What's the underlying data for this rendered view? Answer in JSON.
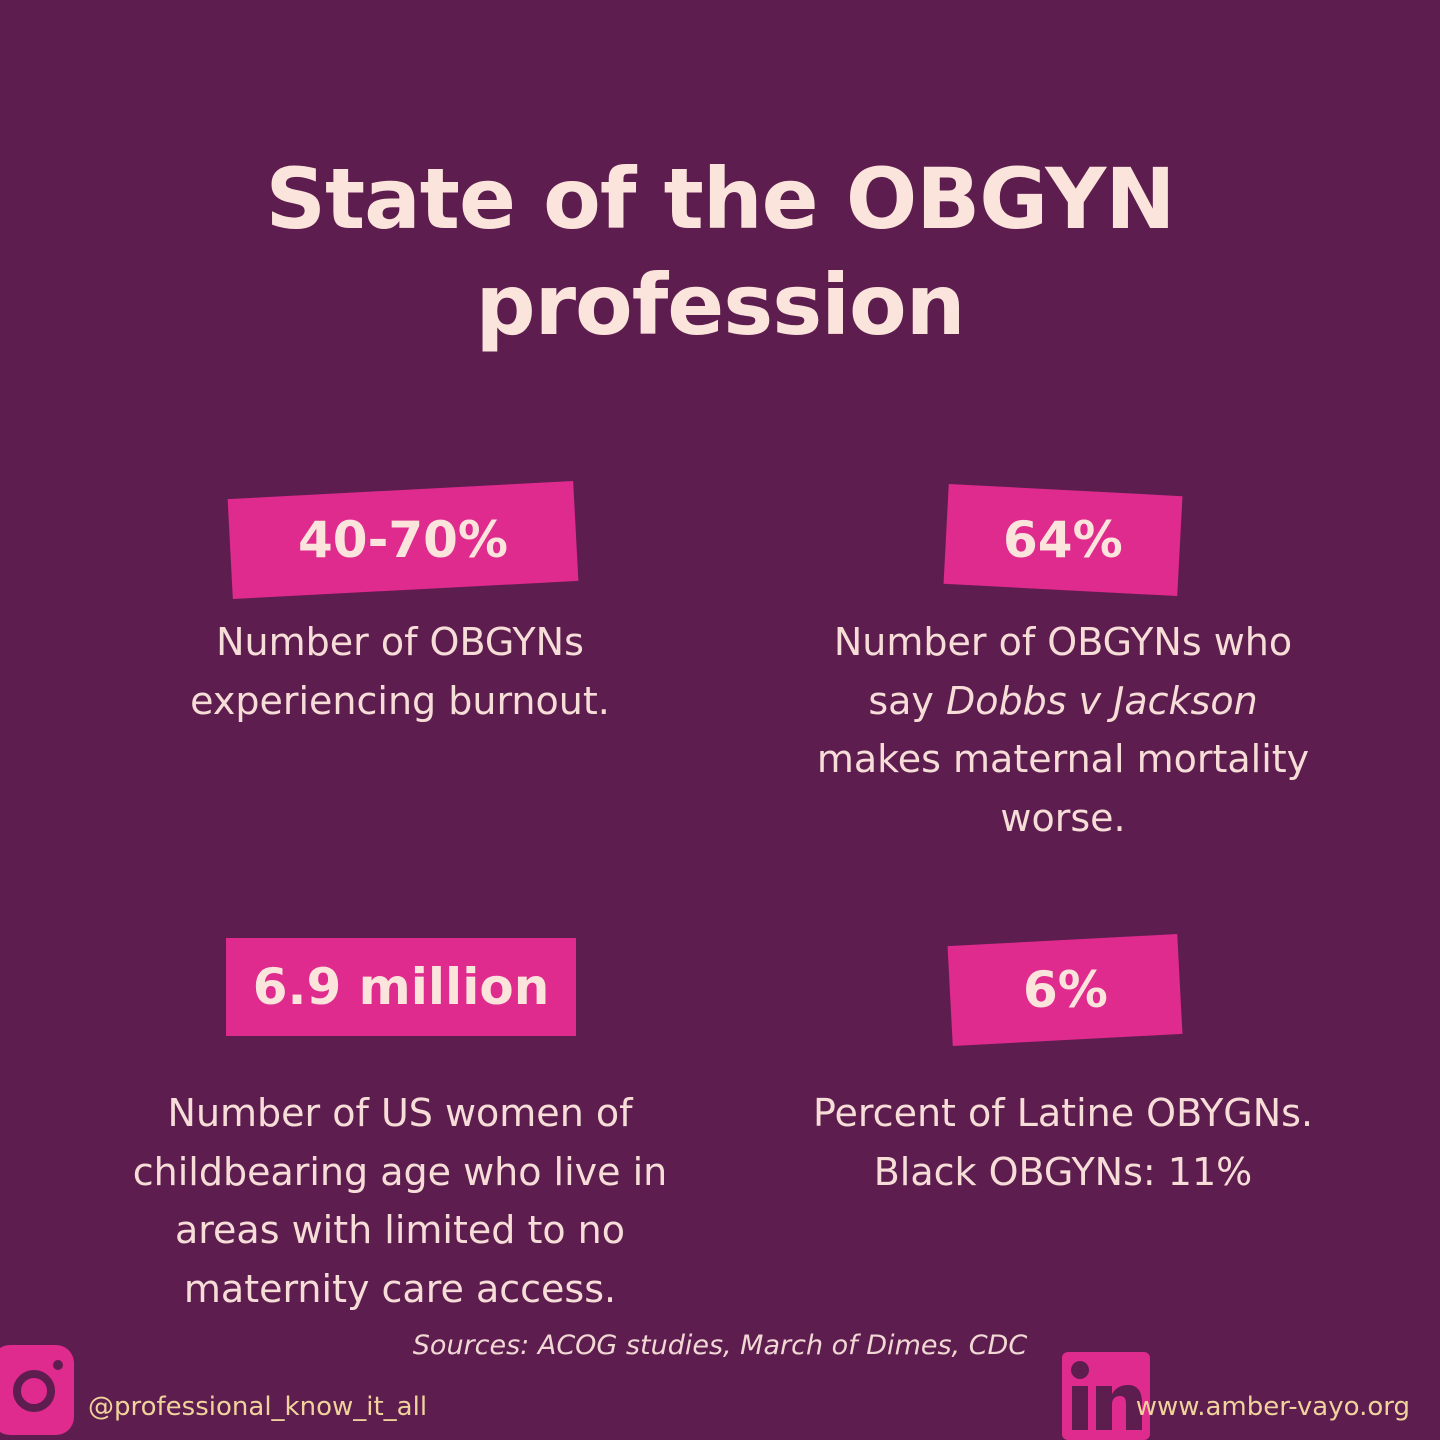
{
  "header": {
    "title_lines": [
      "State of the OBGYN",
      "profession"
    ]
  },
  "stats": [
    {
      "value": "40-70%",
      "lines": [
        "Number of OBGYNs",
        "experiencing burnout."
      ]
    },
    {
      "value": "64%",
      "lines": [
        "Number of OBGYNs who",
        [
          {
            "text": "say "
          },
          {
            "text": "Dobbs v Jackson",
            "style": "italic"
          }
        ],
        "makes maternal mortality",
        "worse."
      ]
    },
    {
      "value": "6.9 million",
      "lines": [
        "Number of US women of",
        "childbearing age who live in",
        "areas with limited to no",
        "maternity care access."
      ]
    },
    {
      "value": "6%",
      "lines": [
        "Percent of Latine OBYGNs.",
        "Black OBGYNs: 11%"
      ]
    }
  ],
  "sources": "Sources: ACOG studies, March of Dimes, CDC",
  "footer": {
    "handle": "@professional_know_it_all",
    "website": "www.amber-vayo.org"
  }
}
